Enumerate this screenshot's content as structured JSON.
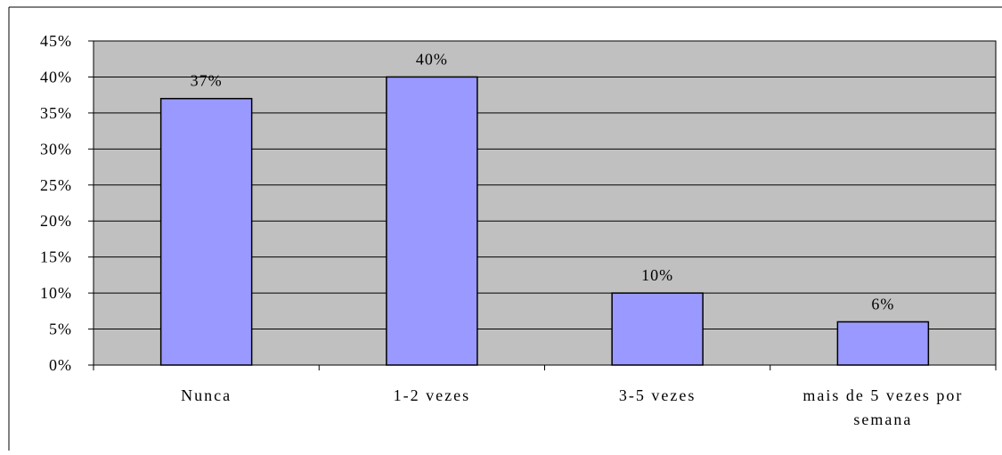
{
  "chart_data": {
    "type": "bar",
    "title": "",
    "xlabel": "",
    "ylabel": "",
    "categories": [
      [
        "Nunca"
      ],
      [
        "1-2 vezes"
      ],
      [
        "3-5 vezes"
      ],
      [
        "mais de 5 vezes por",
        "semana"
      ]
    ],
    "values": [
      37,
      40,
      10,
      6
    ],
    "data_labels": [
      "37%",
      "40%",
      "10%",
      "6%"
    ],
    "ylim": [
      0,
      45
    ],
    "yticks": [
      0,
      5,
      10,
      15,
      20,
      25,
      30,
      35,
      40,
      45
    ],
    "ytick_labels": [
      "0%",
      "5%",
      "10%",
      "15%",
      "20%",
      "25%",
      "30%",
      "35%",
      "40%",
      "45%"
    ],
    "grid": true,
    "legend": "none",
    "colors": {
      "bar_fill": "#9999ff",
      "plot_background": "#c0c0c0",
      "gridline": "#000000",
      "axis": "#000000"
    }
  }
}
